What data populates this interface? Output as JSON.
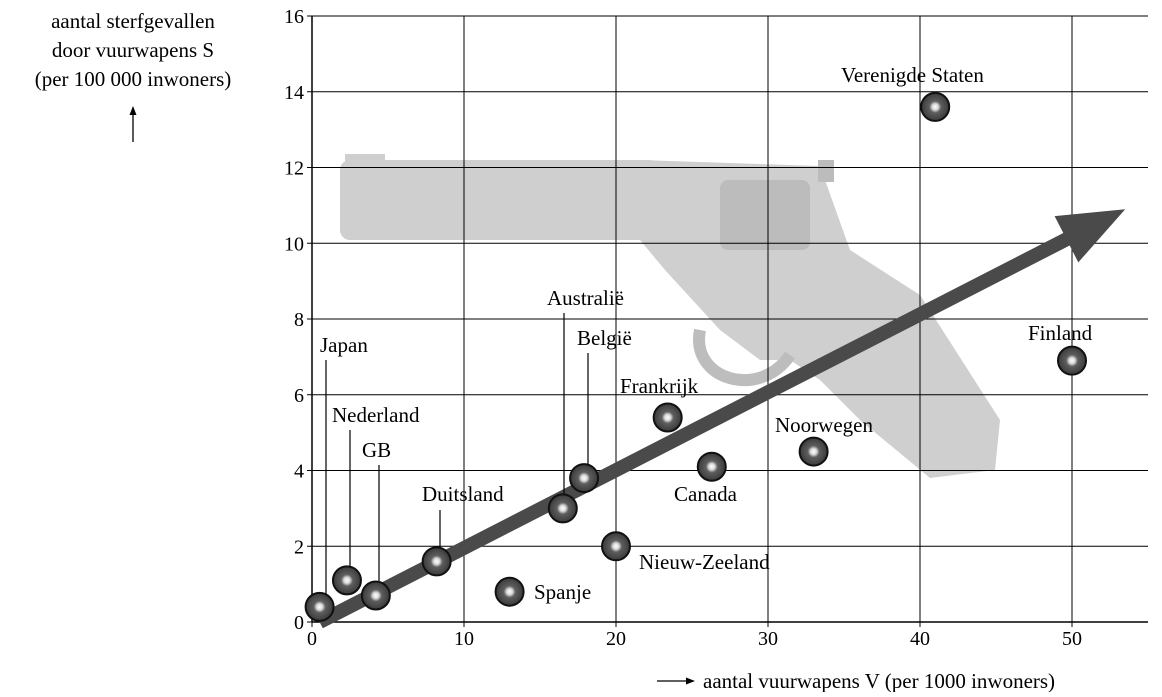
{
  "chart_data": {
    "type": "scatter",
    "title": "",
    "ylabel_lines": [
      "aantal sterfgevallen",
      "door vuurwapens S",
      "(per 100 000 inwoners)"
    ],
    "xlabel": "aantal vuurwapens V (per 1000 inwoners)",
    "xlim": [
      0,
      55
    ],
    "ylim": [
      0,
      16
    ],
    "xticks": [
      0,
      10,
      20,
      30,
      40,
      50
    ],
    "yticks": [
      0,
      2,
      4,
      6,
      8,
      10,
      12,
      14,
      16
    ],
    "grid": true,
    "points": [
      {
        "label": "Japan",
        "x": 0.5,
        "y": 0.4
      },
      {
        "label": "Nederland",
        "x": 2.3,
        "y": 1.1
      },
      {
        "label": "GB",
        "x": 4.2,
        "y": 0.7
      },
      {
        "label": "Duitsland",
        "x": 8.2,
        "y": 1.6
      },
      {
        "label": "Spanje",
        "x": 13.0,
        "y": 0.8
      },
      {
        "label": "Australië",
        "x": 16.5,
        "y": 3.0
      },
      {
        "label": "België",
        "x": 17.9,
        "y": 3.8
      },
      {
        "label": "Nieuw-Zeeland",
        "x": 20.0,
        "y": 2.0
      },
      {
        "label": "Frankrijk",
        "x": 23.4,
        "y": 5.4
      },
      {
        "label": "Canada",
        "x": 26.3,
        "y": 4.1
      },
      {
        "label": "Noorwegen",
        "x": 33.0,
        "y": 4.5
      },
      {
        "label": "Verenigde Staten",
        "x": 41.0,
        "y": 13.6
      },
      {
        "label": "Finland",
        "x": 50.0,
        "y": 6.9
      }
    ],
    "trend_arrow": {
      "from": [
        0.5,
        0.0
      ],
      "to": [
        53.5,
        10.9
      ]
    },
    "background_icon": "revolver-icon"
  }
}
